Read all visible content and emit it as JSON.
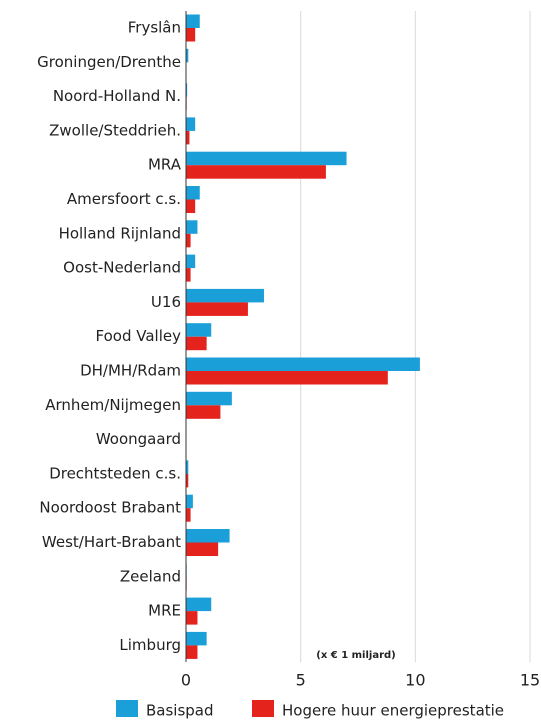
{
  "chart_data": {
    "type": "barh",
    "categories": [
      "Fryslân",
      "Groningen/Drenthe",
      "Noord-Holland N.",
      "Zwolle/Steddrieh.",
      "MRA",
      "Amersfoort c.s.",
      "Holland Rijnland",
      "Oost-Nederland",
      "U16",
      "Food Valley",
      "DH/MH/Rdam",
      "Arnhem/Nijmegen",
      "Woongaard",
      "Drechtsteden c.s.",
      "Noordoost Brabant",
      "West/Hart-Brabant",
      "Zeeland",
      "MRE",
      "Limburg"
    ],
    "series": [
      {
        "name": "Basispad",
        "color": "#1a9fd9",
        "values": [
          0.6,
          0.1,
          0.05,
          0.4,
          7.0,
          0.6,
          0.5,
          0.4,
          3.4,
          1.1,
          10.2,
          2.0,
          0.02,
          0.1,
          0.3,
          1.9,
          0.03,
          1.1,
          0.9
        ]
      },
      {
        "name": "Hogere huur energieprestatie",
        "color": "#e3231c",
        "values": [
          0.4,
          0.02,
          0.03,
          0.15,
          6.1,
          0.4,
          0.2,
          0.2,
          2.7,
          0.9,
          8.8,
          1.5,
          0.02,
          0.1,
          0.2,
          1.4,
          0.03,
          0.5,
          0.5
        ]
      }
    ],
    "annotation": "(x € 1 miljard)",
    "xlim": [
      0,
      15
    ],
    "xticks": [
      0,
      5,
      10,
      15
    ],
    "grid": true,
    "legend": "bottom"
  }
}
